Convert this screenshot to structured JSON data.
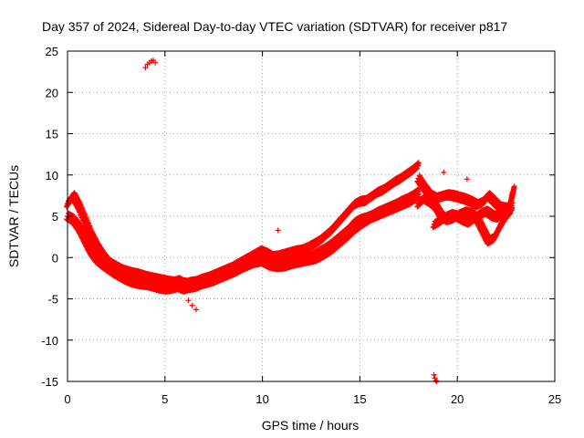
{
  "chart_data": {
    "type": "scatter",
    "title": "Day 357 of 2024, Sidereal Day-to-day VTEC variation (SDTVAR) for receiver p817",
    "xlabel": "GPS time / hours",
    "ylabel": "SDTVAR / TECUs",
    "xlim": [
      0,
      25
    ],
    "ylim": [
      -15,
      25
    ],
    "xticks": [
      0,
      5,
      10,
      15,
      20,
      25
    ],
    "yticks": [
      -15,
      -10,
      -5,
      0,
      5,
      10,
      15,
      20,
      25
    ],
    "xtick_labels": [
      "0",
      "5",
      "10",
      "15",
      "20",
      "25"
    ],
    "ytick_labels": [
      "-15",
      "-10",
      "-5",
      "0",
      "5",
      "10",
      "15",
      "20",
      "25"
    ],
    "grid": true,
    "marker": "plus",
    "marker_color": "#ff0000",
    "series": [
      {
        "name": "track-a",
        "x": [
          0.0,
          0.3,
          0.6,
          0.9,
          1.2,
          1.5,
          1.8,
          2.1,
          2.4,
          2.7,
          3.0,
          3.3,
          3.6,
          3.9,
          4.2,
          4.5,
          4.8,
          5.1,
          5.4,
          5.7,
          6.0,
          6.3,
          6.6,
          6.9,
          7.2,
          7.5,
          7.8,
          8.1,
          8.4,
          8.7,
          9.0,
          9.3,
          9.6,
          9.9,
          10.2,
          10.5,
          10.8,
          11.1,
          11.4,
          11.7,
          12.0,
          12.3,
          12.6,
          12.9,
          13.2,
          13.5,
          13.8,
          14.1,
          14.4,
          14.7,
          15.0,
          15.3,
          15.6,
          15.9,
          16.2,
          16.5,
          16.8,
          17.1,
          17.4,
          17.7,
          18.0
        ],
        "y": [
          6.5,
          7.5,
          6.2,
          4.5,
          2.8,
          1.4,
          0.3,
          -0.6,
          -1.0,
          -1.4,
          -1.8,
          -2.0,
          -2.2,
          -2.3,
          -2.5,
          -2.8,
          -3.0,
          -3.1,
          -3.0,
          -2.8,
          -3.2,
          -3.0,
          -2.9,
          -2.6,
          -2.4,
          -2.1,
          -1.8,
          -1.5,
          -1.2,
          -0.8,
          -0.4,
          0.0,
          0.4,
          0.8,
          0.5,
          0.1,
          0.2,
          0.4,
          0.6,
          0.8,
          0.9,
          1.2,
          1.6,
          2.0,
          2.6,
          3.2,
          4.0,
          4.8,
          5.6,
          6.4,
          6.8,
          6.9,
          7.4,
          7.9,
          8.2,
          8.7,
          9.2,
          9.6,
          10.1,
          10.6,
          11.2
        ]
      },
      {
        "name": "track-b",
        "x": [
          0.0,
          0.3,
          0.6,
          0.9,
          1.2,
          1.5,
          1.8,
          2.1,
          2.4,
          2.7,
          3.0,
          3.3,
          3.6,
          3.9,
          4.2,
          4.5,
          4.8,
          5.1,
          5.4,
          5.7,
          6.0,
          6.3,
          6.6,
          6.9,
          7.2,
          7.5,
          7.8,
          8.1,
          8.4,
          8.7,
          9.0,
          9.3,
          9.6,
          9.9,
          10.2,
          10.5,
          10.8,
          11.1,
          11.4,
          11.7,
          12.0,
          12.3,
          12.6,
          12.9,
          13.2,
          13.5,
          13.8,
          14.1,
          14.4,
          14.7,
          15.0,
          15.3,
          15.6,
          15.9,
          16.2,
          16.5,
          16.8,
          17.1,
          17.4,
          17.7,
          18.0
        ],
        "y": [
          5.0,
          4.6,
          3.6,
          2.2,
          0.8,
          -0.2,
          -0.8,
          -1.3,
          -1.8,
          -2.2,
          -2.6,
          -2.9,
          -3.1,
          -3.2,
          -3.3,
          -3.5,
          -3.7,
          -3.8,
          -3.7,
          -3.5,
          -3.8,
          -3.6,
          -3.5,
          -3.2,
          -3.0,
          -2.8,
          -2.5,
          -2.2,
          -1.9,
          -1.6,
          -1.2,
          -0.9,
          -0.6,
          -0.3,
          -0.5,
          -0.9,
          -0.8,
          -0.6,
          -0.5,
          -0.3,
          -0.2,
          0.0,
          0.3,
          0.7,
          1.1,
          1.6,
          2.2,
          2.8,
          3.4,
          4.2,
          4.6,
          4.8,
          5.1,
          5.5,
          5.8,
          6.1,
          6.4,
          6.8,
          7.1,
          7.5,
          8.0
        ]
      },
      {
        "name": "track-c",
        "x": [
          2.0,
          2.4,
          2.8,
          3.2,
          3.6,
          4.0,
          4.4,
          4.8,
          5.2,
          5.6,
          6.0,
          6.4,
          6.8,
          7.2,
          7.6,
          8.0,
          8.4,
          8.8,
          9.2,
          9.6,
          10.0,
          10.4,
          10.8,
          11.2,
          11.6,
          12.0,
          12.4,
          12.8,
          13.2,
          13.6,
          14.0,
          14.4,
          14.8,
          15.2,
          15.6,
          16.0,
          16.4,
          16.8,
          17.2,
          17.6,
          18.0
        ],
        "y": [
          -1.0,
          -1.2,
          -1.5,
          -1.8,
          -2.0,
          -2.3,
          -2.5,
          -2.7,
          -2.9,
          -3.0,
          -3.1,
          -3.2,
          -3.0,
          -2.7,
          -2.3,
          -1.9,
          -1.5,
          -1.1,
          -0.8,
          -0.6,
          -0.4,
          -0.9,
          -1.1,
          -1.0,
          -0.7,
          -0.5,
          -0.3,
          -0.1,
          0.4,
          1.0,
          1.8,
          2.6,
          3.5,
          4.2,
          4.8,
          5.2,
          5.6,
          6.0,
          6.4,
          6.8,
          7.4
        ]
      },
      {
        "name": "track-d",
        "x": [
          18.0,
          18.3,
          18.6,
          18.9,
          19.2,
          19.5,
          19.8,
          20.1,
          20.4,
          20.7,
          21.0,
          21.3,
          21.6,
          21.9,
          22.2,
          22.5,
          22.8
        ],
        "y": [
          6.5,
          7.2,
          6.8,
          6.2,
          5.0,
          4.6,
          4.8,
          5.2,
          5.5,
          5.3,
          4.8,
          3.4,
          2.0,
          2.4,
          3.8,
          5.0,
          5.8
        ]
      },
      {
        "name": "track-e",
        "x": [
          18.0,
          18.3,
          18.6,
          18.9,
          19.2,
          19.5,
          19.8,
          20.1,
          20.4,
          20.7,
          21.0,
          21.3,
          21.6,
          21.9,
          22.2,
          22.5,
          22.8
        ],
        "y": [
          9.6,
          8.5,
          7.6,
          7.2,
          7.4,
          7.6,
          7.5,
          7.3,
          7.1,
          6.8,
          6.4,
          6.7,
          7.5,
          6.8,
          6.1,
          6.0,
          6.3
        ]
      },
      {
        "name": "track-f",
        "x": [
          18.8,
          19.1,
          19.4,
          19.7,
          20.0,
          20.3,
          20.6,
          20.9,
          21.2,
          21.5,
          21.8,
          22.1,
          22.4,
          22.7,
          22.9
        ],
        "y": [
          4.0,
          4.4,
          4.9,
          5.2,
          5.0,
          4.6,
          4.3,
          4.8,
          5.3,
          5.6,
          5.1,
          4.9,
          5.5,
          6.2,
          8.5
        ]
      },
      {
        "name": "outliers",
        "x": [
          4.0,
          4.1,
          4.2,
          4.3,
          4.4,
          4.5,
          10.8,
          18.8,
          18.85,
          18.9,
          18.95,
          19.3,
          20.5,
          6.2,
          6.4,
          6.6
        ],
        "y": [
          23.0,
          23.4,
          23.6,
          23.8,
          23.9,
          23.6,
          3.3,
          -14.2,
          -14.6,
          -14.9,
          -15.0,
          10.3,
          9.5,
          -5.2,
          -5.8,
          -6.3
        ]
      }
    ]
  }
}
